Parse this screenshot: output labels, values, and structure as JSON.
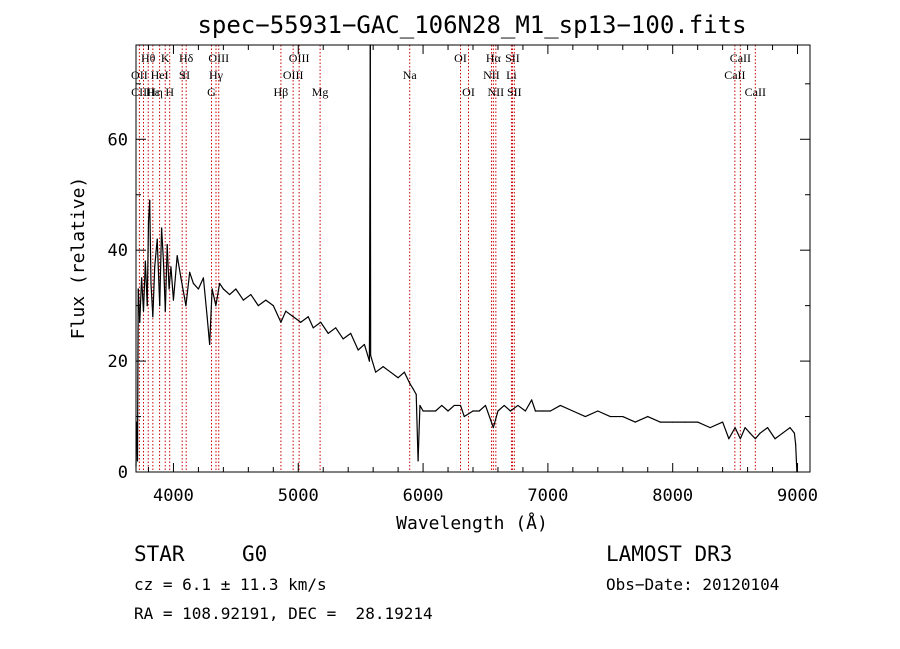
{
  "chart_data": {
    "type": "line",
    "title": "spec−55931−GAC_106N28_M1_sp13−100.fits",
    "xlabel": "Wavelength (Å)",
    "ylabel": "Flux (relative)",
    "xlim": [
      3700,
      9100
    ],
    "ylim": [
      0,
      77
    ],
    "x_ticks": [
      4000,
      5000,
      6000,
      7000,
      8000,
      9000
    ],
    "y_ticks": [
      0,
      20,
      40,
      60
    ],
    "line_color": "#000000",
    "marker_color": "#cc0000",
    "series": [
      {
        "name": "flux",
        "points": [
          [
            3700,
            1
          ],
          [
            3705,
            9
          ],
          [
            3712,
            2
          ],
          [
            3718,
            33
          ],
          [
            3730,
            27
          ],
          [
            3745,
            35
          ],
          [
            3760,
            29
          ],
          [
            3775,
            38
          ],
          [
            3790,
            30
          ],
          [
            3800,
            45
          ],
          [
            3810,
            49
          ],
          [
            3820,
            34
          ],
          [
            3835,
            28
          ],
          [
            3850,
            37
          ],
          [
            3870,
            42
          ],
          [
            3890,
            30
          ],
          [
            3905,
            44
          ],
          [
            3920,
            38
          ],
          [
            3935,
            29
          ],
          [
            3950,
            41
          ],
          [
            3965,
            33
          ],
          [
            3980,
            37
          ],
          [
            4000,
            31
          ],
          [
            4030,
            39
          ],
          [
            4060,
            35
          ],
          [
            4100,
            30
          ],
          [
            4130,
            36
          ],
          [
            4160,
            34
          ],
          [
            4200,
            33
          ],
          [
            4240,
            35
          ],
          [
            4270,
            28
          ],
          [
            4290,
            23
          ],
          [
            4310,
            33
          ],
          [
            4340,
            30
          ],
          [
            4370,
            34
          ],
          [
            4400,
            33
          ],
          [
            4450,
            32
          ],
          [
            4500,
            33
          ],
          [
            4560,
            31
          ],
          [
            4620,
            32
          ],
          [
            4680,
            30
          ],
          [
            4740,
            31
          ],
          [
            4800,
            30
          ],
          [
            4861,
            27
          ],
          [
            4900,
            29
          ],
          [
            4960,
            28
          ],
          [
            5020,
            27
          ],
          [
            5080,
            28
          ],
          [
            5120,
            26
          ],
          [
            5180,
            27
          ],
          [
            5240,
            25
          ],
          [
            5300,
            26
          ],
          [
            5360,
            24
          ],
          [
            5420,
            25
          ],
          [
            5480,
            22
          ],
          [
            5530,
            23
          ],
          [
            5570,
            20
          ],
          [
            5577,
            77
          ],
          [
            5580,
            21
          ],
          [
            5620,
            18
          ],
          [
            5680,
            19
          ],
          [
            5740,
            18
          ],
          [
            5800,
            17
          ],
          [
            5850,
            18
          ],
          [
            5893,
            16
          ],
          [
            5920,
            15
          ],
          [
            5945,
            14
          ],
          [
            5960,
            2
          ],
          [
            5975,
            12
          ],
          [
            6000,
            11
          ],
          [
            6050,
            11
          ],
          [
            6100,
            11
          ],
          [
            6150,
            12
          ],
          [
            6200,
            11
          ],
          [
            6250,
            12
          ],
          [
            6300,
            12
          ],
          [
            6330,
            10
          ],
          [
            6400,
            11
          ],
          [
            6450,
            11
          ],
          [
            6500,
            12
          ],
          [
            6563,
            8
          ],
          [
            6600,
            11
          ],
          [
            6650,
            12
          ],
          [
            6700,
            11
          ],
          [
            6760,
            12
          ],
          [
            6820,
            11
          ],
          [
            6870,
            13
          ],
          [
            6900,
            11
          ],
          [
            6960,
            11
          ],
          [
            7020,
            11
          ],
          [
            7100,
            12
          ],
          [
            7200,
            11
          ],
          [
            7300,
            10
          ],
          [
            7400,
            11
          ],
          [
            7500,
            10
          ],
          [
            7600,
            10
          ],
          [
            7700,
            9
          ],
          [
            7800,
            10
          ],
          [
            7900,
            9
          ],
          [
            8000,
            9
          ],
          [
            8100,
            9
          ],
          [
            8200,
            9
          ],
          [
            8300,
            8
          ],
          [
            8400,
            9
          ],
          [
            8450,
            6
          ],
          [
            8500,
            8
          ],
          [
            8542,
            6
          ],
          [
            8580,
            8
          ],
          [
            8620,
            7
          ],
          [
            8662,
            6
          ],
          [
            8700,
            7
          ],
          [
            8760,
            8
          ],
          [
            8820,
            6
          ],
          [
            8880,
            7
          ],
          [
            8940,
            8
          ],
          [
            8975,
            7
          ],
          [
            8985,
            5
          ],
          [
            8995,
            0
          ]
        ]
      }
    ],
    "lines": [
      {
        "label": "Hθ",
        "wavelength": 3798,
        "row": 1
      },
      {
        "label": "OII",
        "wavelength": 3727,
        "row": 2
      },
      {
        "label": "CIIH",
        "wavelength": 3760,
        "row": 3
      },
      {
        "label": "Hε",
        "wavelength": 3835,
        "row": 3
      },
      {
        "label": "HeI",
        "wavelength": 3889,
        "row": 2
      },
      {
        "label": "K",
        "wavelength": 3934,
        "row": 1
      },
      {
        "label": "η",
        "wavelength": 3890,
        "row": 3
      },
      {
        "label": "H",
        "wavelength": 3970,
        "row": 3
      },
      {
        "label": "S",
        "wavelength": 4070,
        "row": 2
      },
      {
        "label": "Hδ",
        "wavelength": 4102,
        "row": 1
      },
      {
        "label": "II",
        "wavelength": 4102,
        "row": 2
      },
      {
        "label": "OIII",
        "wavelength": 4363,
        "row": 1
      },
      {
        "label": "Hγ",
        "wavelength": 4341,
        "row": 2
      },
      {
        "label": "G",
        "wavelength": 4305,
        "row": 3
      },
      {
        "label": "Hβ",
        "wavelength": 4861,
        "row": 3
      },
      {
        "label": "OIII",
        "wavelength": 5007,
        "row": 1
      },
      {
        "label": "OIII",
        "wavelength": 4959,
        "row": 2
      },
      {
        "label": "Mg",
        "wavelength": 5175,
        "row": 3
      },
      {
        "label": "Na",
        "wavelength": 5893,
        "row": 2
      },
      {
        "label": "OI",
        "wavelength": 6300,
        "row": 1
      },
      {
        "label": "OI",
        "wavelength": 6364,
        "row": 3
      },
      {
        "label": "Hα",
        "wavelength": 6563,
        "row": 1
      },
      {
        "label": "SII",
        "wavelength": 6716,
        "row": 1
      },
      {
        "label": "NII",
        "wavelength": 6548,
        "row": 2
      },
      {
        "label": "Li",
        "wavelength": 6708,
        "row": 2
      },
      {
        "label": "NII",
        "wavelength": 6583,
        "row": 3
      },
      {
        "label": "SII",
        "wavelength": 6731,
        "row": 3
      },
      {
        "label": "CaII",
        "wavelength": 8542,
        "row": 1
      },
      {
        "label": "CaII",
        "wavelength": 8498,
        "row": 2
      },
      {
        "label": "CaII",
        "wavelength": 8662,
        "row": 3
      }
    ]
  },
  "info": {
    "object_class": "STAR",
    "subclass": "G0",
    "survey": "LAMOST DR3",
    "redshift": "cz = 6.1 ± 11.3 km/s",
    "obs_date": "Obs−Date: 20120104",
    "coords": "RA = 108.92191, DEC =  28.19214"
  }
}
